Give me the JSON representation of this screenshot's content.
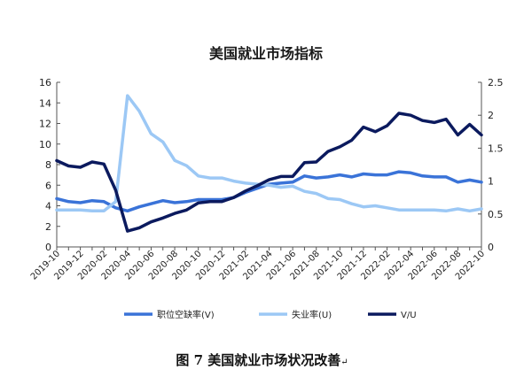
{
  "chart_data": {
    "type": "line",
    "title": "美国就业市场指标",
    "caption": "图 7 美国就业市场状况改善",
    "caption_mark": "↵",
    "x_tick_labels": [
      "2019-10",
      "2019-12",
      "2020-02",
      "2020-04",
      "2020-06",
      "2020-08",
      "2020-10",
      "2020-12",
      "2021-02",
      "2021-04",
      "2021-06",
      "2021-08",
      "2021-10",
      "2021-12",
      "2022-02",
      "2022-04",
      "2022-06",
      "2022-08",
      "2022-10"
    ],
    "left_axis": {
      "ylim": [
        0,
        16
      ],
      "ticks": [
        "0",
        "2",
        "4",
        "6",
        "8",
        "10",
        "12",
        "14",
        "16"
      ]
    },
    "right_axis": {
      "ylim": [
        0,
        2.5
      ],
      "ticks": [
        "0",
        "0.5",
        "1",
        "1.5",
        "2",
        "2.5"
      ]
    },
    "grid": false,
    "legend_position": "bottom",
    "series": [
      {
        "name": "职位空缺率(V)",
        "axis": "left",
        "color": "#3a73d8",
        "values": [
          4.7,
          4.4,
          4.3,
          4.5,
          4.4,
          3.8,
          3.5,
          3.9,
          4.2,
          4.5,
          4.3,
          4.4,
          4.6,
          4.6,
          4.6,
          4.8,
          5.3,
          5.7,
          6.1,
          6.2,
          6.3,
          6.9,
          6.7,
          6.8,
          7.0,
          6.8,
          7.1,
          7.0,
          7.0,
          7.3,
          7.2,
          6.9,
          6.8,
          6.8,
          6.3,
          6.5,
          6.3
        ]
      },
      {
        "name": "失业率(U)",
        "axis": "left",
        "color": "#9cc8f5",
        "values": [
          3.6,
          3.6,
          3.6,
          3.5,
          3.5,
          4.4,
          14.7,
          13.2,
          11.0,
          10.2,
          8.4,
          7.9,
          6.9,
          6.7,
          6.7,
          6.4,
          6.2,
          6.1,
          6.0,
          5.8,
          5.9,
          5.4,
          5.2,
          4.7,
          4.6,
          4.2,
          3.9,
          4.0,
          3.8,
          3.6,
          3.6,
          3.6,
          3.6,
          3.5,
          3.7,
          3.5,
          3.7
        ]
      },
      {
        "name": "V/U",
        "axis": "right",
        "color": "#0b1a5e",
        "values": [
          1.31,
          1.23,
          1.21,
          1.29,
          1.26,
          0.86,
          0.24,
          0.29,
          0.38,
          0.44,
          0.51,
          0.56,
          0.67,
          0.69,
          0.69,
          0.75,
          0.85,
          0.93,
          1.02,
          1.07,
          1.07,
          1.28,
          1.29,
          1.45,
          1.52,
          1.62,
          1.82,
          1.75,
          1.84,
          2.03,
          2.0,
          1.92,
          1.89,
          1.94,
          1.7,
          1.86,
          1.7
        ]
      }
    ]
  }
}
